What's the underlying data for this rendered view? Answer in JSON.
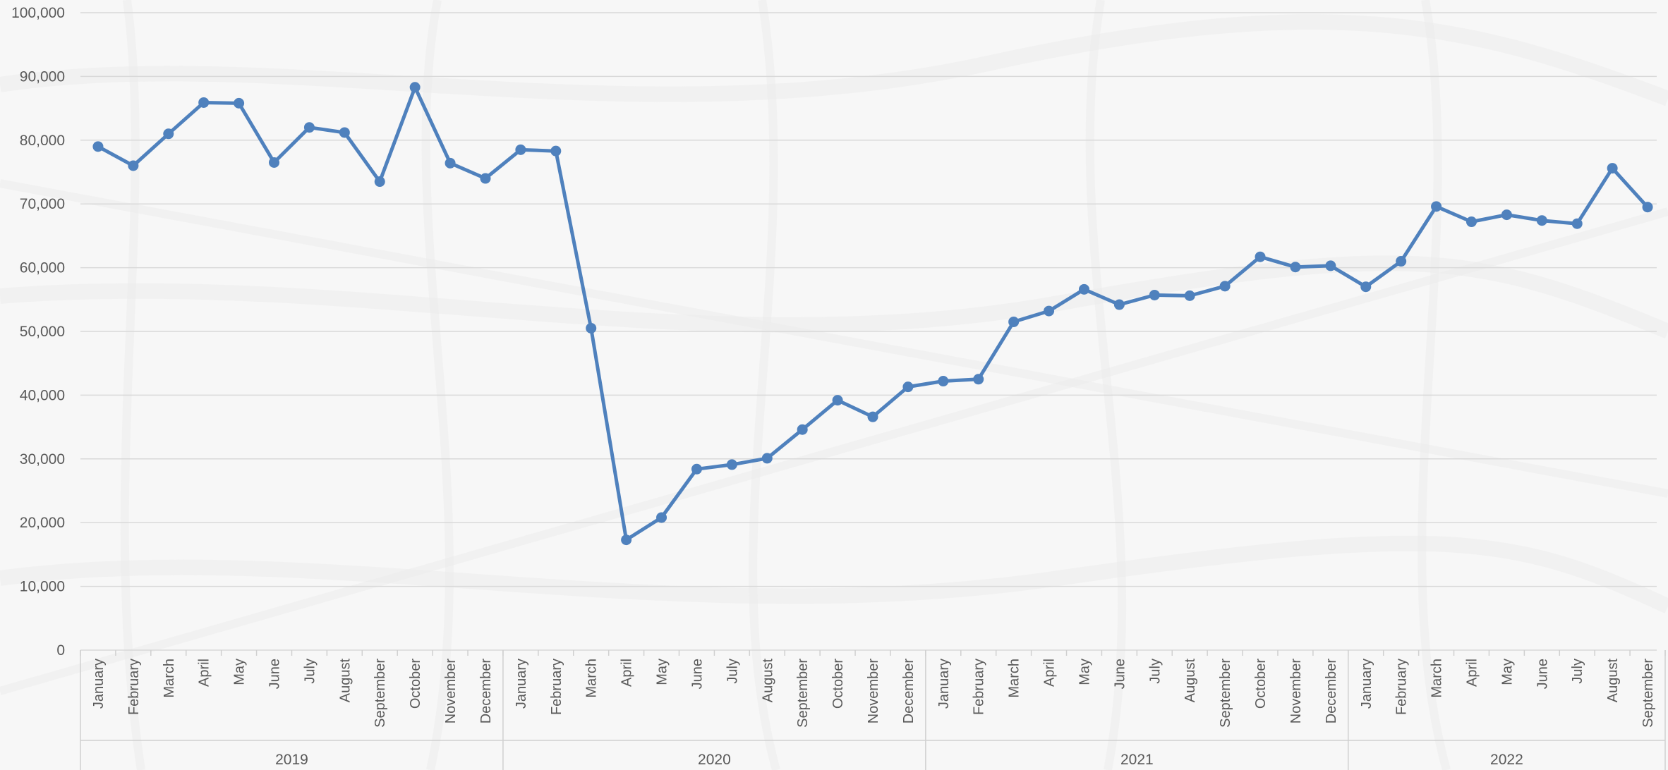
{
  "chart_data": {
    "type": "line",
    "title": "",
    "xlabel": "",
    "ylabel": "",
    "ylim": [
      0,
      100000
    ],
    "yticks": [
      "0",
      "10,000",
      "20,000",
      "30,000",
      "40,000",
      "50,000",
      "60,000",
      "70,000",
      "80,000",
      "90,000",
      "100,000"
    ],
    "ytick_values": [
      0,
      10000,
      20000,
      30000,
      40000,
      50000,
      60000,
      70000,
      80000,
      90000,
      100000
    ],
    "grid": true,
    "legend": "none",
    "groups": [
      {
        "label": "2019",
        "count": 12
      },
      {
        "label": "2020",
        "count": 12
      },
      {
        "label": "2021",
        "count": 12
      },
      {
        "label": "2022",
        "count": 9
      }
    ],
    "categories": [
      "January",
      "February",
      "March",
      "April",
      "May",
      "June",
      "July",
      "August",
      "September",
      "October",
      "November",
      "December",
      "January",
      "February",
      "March",
      "April",
      "May",
      "June",
      "July",
      "August",
      "September",
      "October",
      "November",
      "December",
      "January",
      "February",
      "March",
      "April",
      "May",
      "June",
      "July",
      "August",
      "September",
      "October",
      "November",
      "December",
      "January",
      "February",
      "March",
      "April",
      "May",
      "June",
      "July",
      "August",
      "September"
    ],
    "series": [
      {
        "color": "#4f81bd",
        "values": [
          79000,
          76000,
          81000,
          85900,
          85800,
          76500,
          82000,
          81200,
          73500,
          88300,
          76400,
          74000,
          78500,
          78300,
          50500,
          17300,
          20800,
          28400,
          29100,
          30100,
          34600,
          39200,
          36600,
          41300,
          42200,
          42500,
          51500,
          53200,
          56600,
          54200,
          55700,
          55600,
          57100,
          61700,
          60100,
          60300,
          57000,
          61000,
          69600,
          67200,
          68300,
          67400,
          66900,
          75600,
          69500
        ]
      }
    ]
  }
}
